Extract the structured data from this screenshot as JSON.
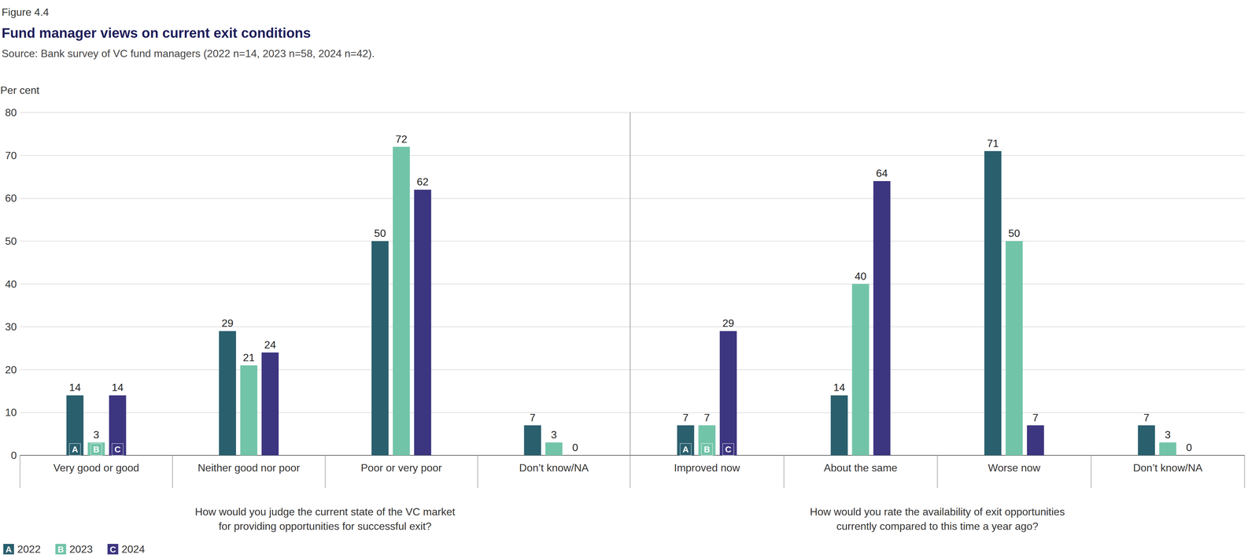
{
  "chart_data": [
    {
      "type": "bar",
      "annotations": [
        "Figure 4.4"
      ],
      "title": "Fund manager views on current exit conditions",
      "subtitle": "Source: Bank survey of VC fund managers (2022 n=14, 2023 n=58, 2024 n=42).",
      "ylabel": "Per cent",
      "xlabel": "How would you judge the current state of the VC market\nfor providing opportunities for successful exit?",
      "categories": [
        "Very good or good",
        "Neither good nor poor",
        "Poor or very poor",
        "Don’t know/NA"
      ],
      "series": [
        {
          "name": "2022",
          "color": "#2a5f6e",
          "marker": "A",
          "values": [
            14,
            29,
            50,
            7
          ]
        },
        {
          "name": "2023",
          "color": "#72c4a9",
          "marker": "B",
          "values": [
            3,
            21,
            72,
            3
          ]
        },
        {
          "name": "2024",
          "color": "#3c3580",
          "marker": "C",
          "values": [
            14,
            24,
            62,
            0
          ]
        }
      ],
      "ylim": [
        0,
        80
      ],
      "yticks": [
        0,
        10,
        20,
        30,
        40,
        50,
        60,
        70,
        80
      ],
      "grid": true,
      "data_labels": true,
      "legend": "bottom-left"
    },
    {
      "type": "bar",
      "xlabel": "How would you rate the availability of exit opportunities\ncurrently compared to this time a year ago?",
      "categories": [
        "Improved now",
        "About the same",
        "Worse now",
        "Don’t know/NA"
      ],
      "series": [
        {
          "name": "2022",
          "color": "#2a5f6e",
          "marker": "A",
          "values": [
            7,
            14,
            71,
            7
          ]
        },
        {
          "name": "2023",
          "color": "#72c4a9",
          "marker": "B",
          "values": [
            7,
            40,
            50,
            3
          ]
        },
        {
          "name": "2024",
          "color": "#3c3580",
          "marker": "C",
          "values": [
            29,
            64,
            7,
            0
          ]
        }
      ],
      "ylim": [
        0,
        80
      ],
      "yticks": [
        0,
        10,
        20,
        30,
        40,
        50,
        60,
        70,
        80
      ],
      "grid": true,
      "data_labels": true,
      "tick_labels": "x"
    }
  ]
}
